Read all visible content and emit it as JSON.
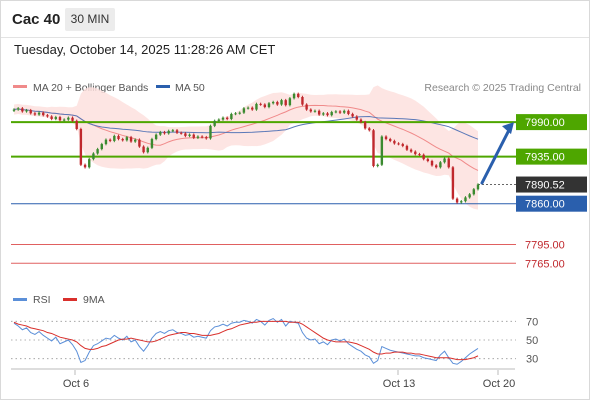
{
  "header": {
    "instrument": "Cac 40",
    "timeframe": "30 MIN"
  },
  "timestamp": "Tuesday, October 14, 2025 11:28:26 AM CET",
  "legend": {
    "bb_label": "MA 20 + Bollinger Bands",
    "ma50_label": "MA 50",
    "credit": "Research © 2025 Trading Central"
  },
  "rsi_legend": {
    "rsi_label": "RSI",
    "ma_label": "9MA"
  },
  "colors": {
    "resistance": "#4ea600",
    "support": "#2a5fad",
    "weak_level": "#e06060",
    "arrow": "#2a5fad",
    "price_box": "#333333",
    "candle_up": "#3a8a2f",
    "candle_down": "#c0282d",
    "bollinger_fill": "#fde0de",
    "ma50": "#5a78b8",
    "ma20": "#f08a8a",
    "rsi": "#5b8fd8",
    "rsi_ma": "#d9302c"
  },
  "chart_data": [
    {
      "type": "candlestick",
      "x_ticks": [
        "Oct 6",
        "Oct 13",
        "Oct 20"
      ],
      "ylim": [
        7740,
        8030
      ],
      "levels": [
        {
          "label": "7990.00",
          "value": 7990,
          "kind": "resistance"
        },
        {
          "label": "7935.00",
          "value": 7935,
          "kind": "resistance"
        },
        {
          "label": "7890.52",
          "value": 7890.52,
          "kind": "last_price"
        },
        {
          "label": "7860.00",
          "value": 7860,
          "kind": "support"
        },
        {
          "label": "7795.00",
          "value": 7795,
          "kind": "weak"
        },
        {
          "label": "7765.00",
          "value": 7765,
          "kind": "weak"
        }
      ],
      "forecast_arrow": {
        "from": 7893,
        "to": 7990
      },
      "close_series": [
        8010,
        8012,
        8007,
        8009,
        8004,
        8002,
        8005,
        8001,
        7999,
        7995,
        7998,
        7993,
        7994,
        7997,
        7992,
        7979,
        7922,
        7918,
        7931,
        7940,
        7947,
        7955,
        7962,
        7960,
        7968,
        7963,
        7961,
        7966,
        7959,
        7962,
        7951,
        7942,
        7949,
        7963,
        7970,
        7974,
        7972,
        7976,
        7977,
        7973,
        7972,
        7968,
        7970,
        7965,
        7967,
        7966,
        7964,
        7984,
        7992,
        7994,
        7997,
        7995,
        8003,
        8004,
        8005,
        8012,
        8013,
        8010,
        8019,
        8018,
        8014,
        8020,
        8022,
        8018,
        8025,
        8017,
        8028,
        8035,
        8030,
        8018,
        8010,
        8007,
        8008,
        8002,
        8004,
        8001,
        8006,
        8007,
        8005,
        8008,
        8003,
        7999,
        7994,
        7990,
        7980,
        7977,
        7920,
        7922,
        7967,
        7963,
        7960,
        7956,
        7955,
        7952,
        7946,
        7943,
        7939,
        7938,
        7931,
        7928,
        7921,
        7918,
        7926,
        7932,
        7918,
        7868,
        7862,
        7864,
        7870,
        7875,
        7883,
        7890.52
      ]
    },
    {
      "type": "line",
      "title": "RSI",
      "ylim": [
        20,
        80
      ],
      "y_ticks": [
        70,
        50,
        30
      ],
      "series": [
        {
          "name": "RSI",
          "values": [
            68,
            65,
            61,
            63,
            58,
            56,
            59,
            55,
            52,
            49,
            53,
            46,
            48,
            50,
            45,
            38,
            26,
            28,
            37,
            44,
            46,
            49,
            52,
            51,
            55,
            52,
            50,
            54,
            48,
            50,
            43,
            38,
            44,
            52,
            57,
            59,
            57,
            60,
            61,
            58,
            57,
            55,
            56,
            53,
            54,
            53,
            52,
            60,
            64,
            65,
            67,
            65,
            68,
            69,
            69,
            71,
            70,
            68,
            72,
            70,
            66,
            71,
            73,
            69,
            72,
            65,
            70,
            69,
            68,
            58,
            52,
            50,
            51,
            46,
            48,
            45,
            50,
            51,
            49,
            51,
            46,
            43,
            40,
            38,
            34,
            32,
            25,
            28,
            43,
            41,
            39,
            38,
            37,
            36,
            35,
            34,
            33,
            33,
            31,
            30,
            29,
            28,
            34,
            38,
            31,
            25,
            24,
            27,
            31,
            35,
            38,
            41
          ]
        },
        {
          "name": "9MA",
          "values": [
            69,
            67,
            66,
            65,
            63,
            62,
            61,
            60,
            58,
            57,
            55,
            53,
            52,
            51,
            50,
            48,
            44,
            41,
            40,
            40,
            41,
            43,
            44,
            46,
            48,
            50,
            51,
            51,
            52,
            51,
            50,
            49,
            48,
            48,
            49,
            51,
            53,
            55,
            56,
            57,
            58,
            58,
            57,
            57,
            56,
            55,
            55,
            55,
            56,
            57,
            59,
            61,
            62,
            64,
            66,
            67,
            68,
            69,
            69,
            70,
            70,
            70,
            70,
            70,
            70,
            70,
            69,
            69,
            69,
            67,
            64,
            61,
            58,
            55,
            52,
            50,
            49,
            48,
            48,
            48,
            48,
            47,
            46,
            44,
            42,
            40,
            37,
            35,
            35,
            36,
            36,
            37,
            37,
            37,
            36,
            36,
            35,
            35,
            34,
            33,
            32,
            31,
            31,
            31,
            31,
            30,
            29,
            29,
            29,
            30,
            31,
            33
          ]
        }
      ]
    }
  ]
}
